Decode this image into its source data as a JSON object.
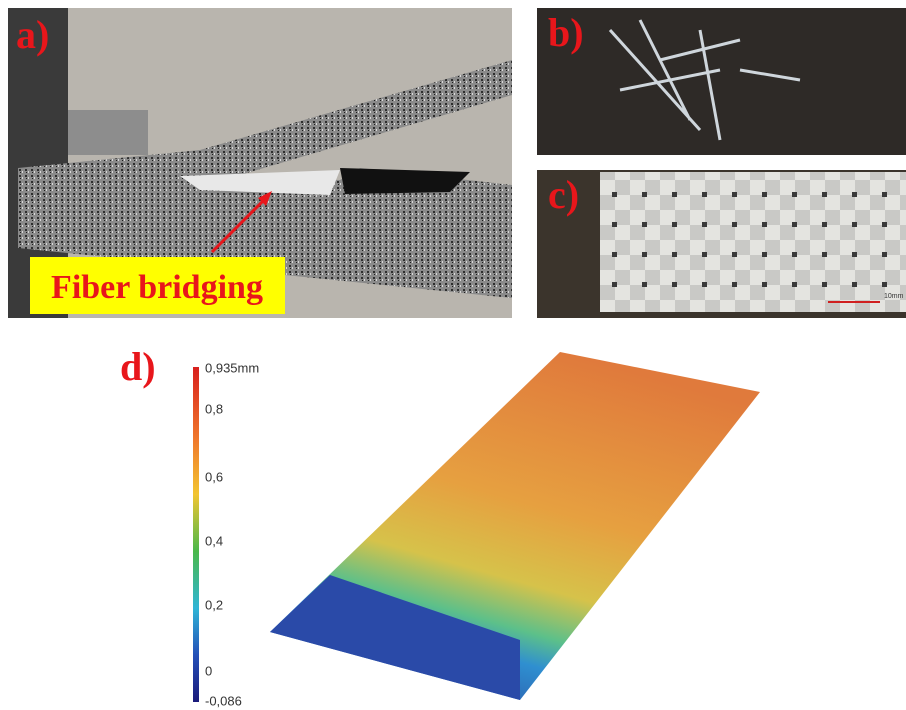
{
  "panels": {
    "a": {
      "label": "a)",
      "annotation": "Fiber bridging"
    },
    "b": {
      "label": "b)"
    },
    "c": {
      "label": "c)",
      "scale_bar": "10mm"
    },
    "d": {
      "label": "d)",
      "colorbar": [
        "0,935mm",
        "0,8",
        "0,6",
        "0,4",
        "0,2",
        "0",
        "-0,086"
      ]
    }
  }
}
